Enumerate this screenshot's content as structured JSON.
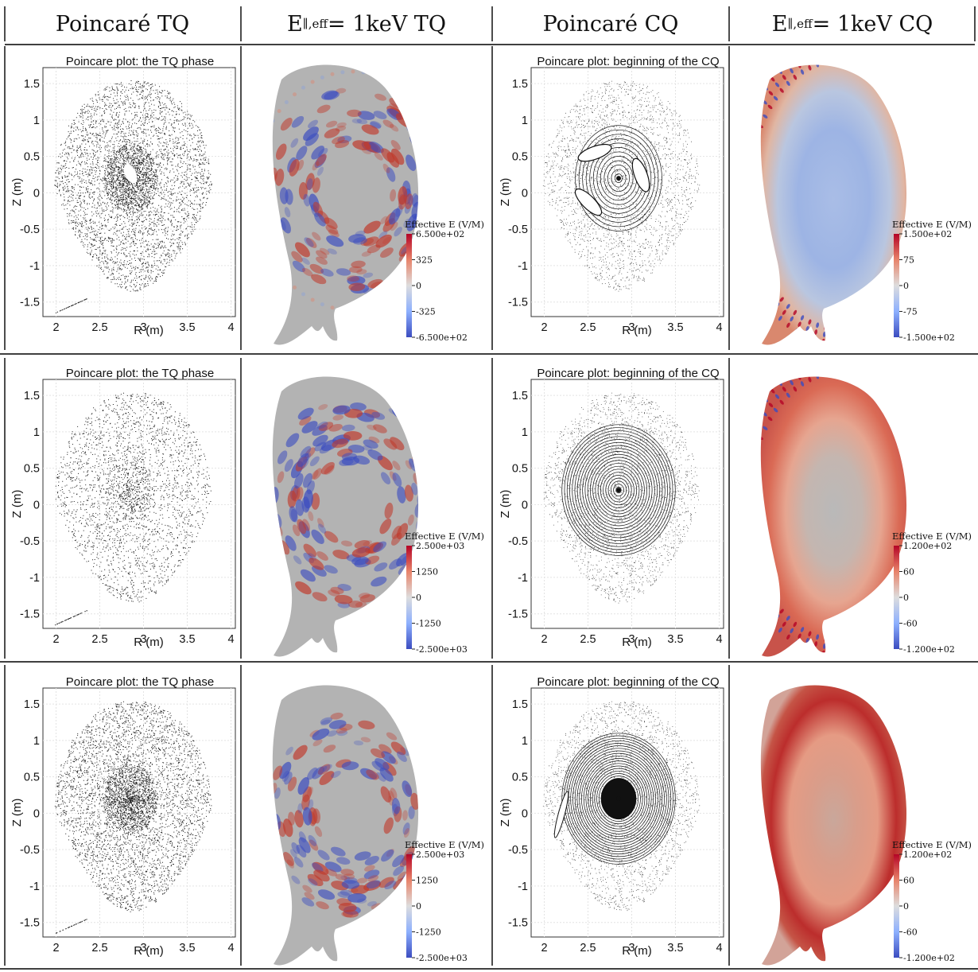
{
  "header": {
    "col1": "Poincaré TQ",
    "col2_prefix": "E",
    "col2_sub": "∥,eff",
    "col2_suffix": " = 1keV TQ",
    "col3": "Poincaré CQ",
    "col4_prefix": "E",
    "col4_sub": "∥,eff",
    "col4_suffix": " = 1keV CQ"
  },
  "rows": [
    {
      "tq_title": "Poincare plot: the TQ phase",
      "cq_title": "Poincare plot: beginning of the CQ",
      "tq_xticks": [
        "2",
        "2.5",
        "3",
        "3.5",
        "4"
      ],
      "cq_xticks": [
        "2",
        "2.5",
        "3",
        "3.5",
        "4"
      ],
      "yticks": [
        "1.5",
        "1",
        "0.5",
        "0",
        "-0.5",
        "-1",
        "-1.5"
      ],
      "tq_density": "high-uniform",
      "cq_structure": "islands",
      "cb1": {
        "title": "Effective E (V/M)",
        "labels": [
          "6.500e+02",
          "325",
          "0",
          "-325",
          "-6.500e+02"
        ]
      },
      "cb2": {
        "title": "Effective E (V/M)",
        "labels": [
          "1.500e+02",
          "75",
          "0",
          "-75",
          "-1.500e+02"
        ]
      },
      "field_tq": "ring-mixed",
      "field_cq": "blue-core"
    },
    {
      "tq_title": "Poincare plot: the TQ phase",
      "cq_title": "Poincare plot: beginning of the CQ",
      "tq_xticks": [
        "2",
        "2.5",
        "3",
        "3.5",
        "4"
      ],
      "cq_xticks": [
        "2",
        "2.5",
        "3",
        "3.5",
        "4"
      ],
      "yticks": [
        "1.5",
        "1",
        "0.5",
        "0",
        "-0.5",
        "-1",
        "-1.5"
      ],
      "tq_density": "sparse",
      "cq_structure": "rings",
      "cb1": {
        "title": "Effective E (V/M)",
        "labels": [
          "2.500e+03",
          "1250",
          "0",
          "-1250",
          "-2.500e+03"
        ]
      },
      "cb2": {
        "title": "Effective E (V/M)",
        "labels": [
          "1.200e+02",
          "60",
          "0",
          "-60",
          "-1.200e+02"
        ]
      },
      "field_tq": "ring-mixed",
      "field_cq": "red-edge"
    },
    {
      "tq_title": "Poincare plot: the TQ phase",
      "cq_title": "Poincare plot: beginning of the CQ",
      "tq_xticks": [
        "2",
        "2.5",
        "3",
        "3.5",
        "4"
      ],
      "cq_xticks": [
        "2",
        "2.5",
        "3",
        "3.5",
        "4"
      ],
      "yticks": [
        "1.5",
        "1",
        "0.5",
        "0",
        "-0.5",
        "-1",
        "-1.5"
      ],
      "tq_density": "dense",
      "cq_structure": "dense-core",
      "cb1": {
        "title": "Effective E (V/M)",
        "labels": [
          "2.500e+03",
          "1250",
          "0",
          "-1250",
          "-2.500e+03"
        ]
      },
      "cb2": {
        "title": "Effective E (V/M)",
        "labels": [
          "1.200e+02",
          "60",
          "0",
          "-60",
          "-1.200e+02"
        ]
      },
      "field_tq": "ring-mixed",
      "field_cq": "red-shell"
    }
  ],
  "axes": {
    "xlabel": "R (m)",
    "ylabel": "Z (m)"
  },
  "colors": {
    "neutral": "#b2b2b2",
    "red": "#b40426",
    "blue": "#3b4cc0",
    "line": "#000000"
  }
}
